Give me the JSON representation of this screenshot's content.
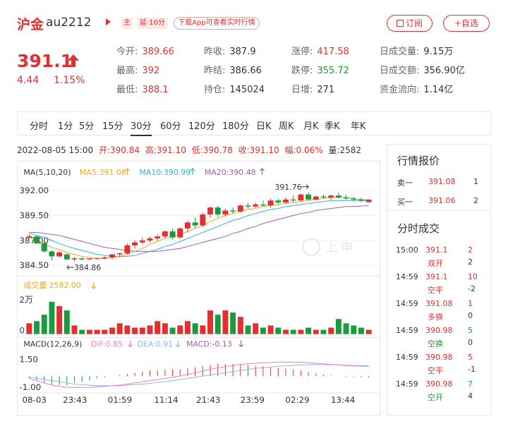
{
  "header": {
    "title": "沪金",
    "code": "au2212",
    "tag_main": "主",
    "tag_delay": "延 10分",
    "download": "下载App可查看实时行情",
    "subscribe": "订阅",
    "add": "+自选"
  },
  "quote": {
    "price": "391.1",
    "change": "4.44",
    "pct": "1.15%"
  },
  "stats": [
    {
      "label": "今开:",
      "value": "389.66",
      "color": "red"
    },
    {
      "label": "昨收:",
      "value": "387.9",
      "color": ""
    },
    {
      "label": "涨停:",
      "value": "417.58",
      "color": "red"
    },
    {
      "label": "日成交量:",
      "value": "9.15万",
      "color": ""
    },
    {
      "label": "最高:",
      "value": "392",
      "color": "red"
    },
    {
      "label": "昨结:",
      "value": "386.66",
      "color": ""
    },
    {
      "label": "跌停:",
      "value": "355.72",
      "color": "green"
    },
    {
      "label": "日成交额:",
      "value": "356.90亿",
      "color": ""
    },
    {
      "label": "最低:",
      "value": "388.1",
      "color": "red"
    },
    {
      "label": "持仓:",
      "value": "145024",
      "color": ""
    },
    {
      "label": "日增:",
      "value": "271",
      "color": ""
    },
    {
      "label": "资金流向:",
      "value": "1.14亿",
      "color": ""
    }
  ],
  "tabs": [
    "分时",
    "1分",
    "5分",
    "15分",
    "30分",
    "60分",
    "120分",
    "180分",
    "日K",
    "周K",
    "月K",
    "季K",
    "年K"
  ],
  "active_tab": "30分",
  "info": {
    "datetime": "2022-08-05  15:00",
    "open": "开:390.84",
    "high": "高:391.10",
    "low": "低:390.78",
    "close": "收:391.10",
    "amp": "幅:0.06%",
    "vol": "量:2582"
  },
  "chart_data": {
    "type": "candlestick",
    "ma_legend": {
      "label": "MA(5,10,20)",
      "ma5": "MA5:391.08",
      "ma10": "MA10:390.99",
      "ma20": "MA20:390.48"
    },
    "price_ticks": [
      "392.00",
      "389.50",
      "387.00",
      "384.50"
    ],
    "price_range": [
      383.8,
      392.8
    ],
    "max_label": "391.76",
    "min_label": "384.86",
    "vol_legend": "成交量  2582.00",
    "vol_ticks": [
      "2万",
      "0"
    ],
    "macd_legend": {
      "label": "MACD(12,26,9)",
      "dif": "DIF:0.85",
      "dea": "DEA:0.91",
      "macd": "MACD:-0.13"
    },
    "macd_ticks": [
      "1.50",
      "-1.00"
    ],
    "x_labels": [
      "08-03",
      "23:43",
      "01:59",
      "11:14",
      "21:43",
      "23:59",
      "02:29",
      "13:44"
    ],
    "watermark": "上 申",
    "candles": [
      [
        387.3,
        387.6,
        387.2,
        387.4
      ],
      [
        387.4,
        387.5,
        386.6,
        386.7
      ],
      [
        386.7,
        386.8,
        385.8,
        385.9
      ],
      [
        385.9,
        386.0,
        385.0,
        385.4
      ],
      [
        385.4,
        385.9,
        385.3,
        385.8
      ],
      [
        385.6,
        385.7,
        385.0,
        385.1
      ],
      [
        385.1,
        385.3,
        384.9,
        385.2
      ],
      [
        385.2,
        385.3,
        385.0,
        385.1
      ],
      [
        385.1,
        385.2,
        385.0,
        385.2
      ],
      [
        385.2,
        385.3,
        385.1,
        385.2
      ],
      [
        385.2,
        385.4,
        385.1,
        385.3
      ],
      [
        385.3,
        385.6,
        385.1,
        385.6
      ],
      [
        385.6,
        385.8,
        385.3,
        385.7
      ],
      [
        385.7,
        386.7,
        385.6,
        386.5
      ],
      [
        386.5,
        387.0,
        386.2,
        386.8
      ],
      [
        386.8,
        387.3,
        386.6,
        387.0
      ],
      [
        387.0,
        387.4,
        386.8,
        387.2
      ],
      [
        387.2,
        387.6,
        387.0,
        387.4
      ],
      [
        387.4,
        388.0,
        387.2,
        387.9
      ],
      [
        387.9,
        388.2,
        387.1,
        387.3
      ],
      [
        387.3,
        388.3,
        387.2,
        388.2
      ],
      [
        388.2,
        389.0,
        387.8,
        388.8
      ],
      [
        388.8,
        389.3,
        388.2,
        388.5
      ],
      [
        388.5,
        389.8,
        388.3,
        389.6
      ],
      [
        389.6,
        390.4,
        389.3,
        390.3
      ],
      [
        390.3,
        390.5,
        389.3,
        389.6
      ],
      [
        389.6,
        390.2,
        389.4,
        390.0
      ],
      [
        390.0,
        390.3,
        389.7,
        389.9
      ],
      [
        389.9,
        390.6,
        389.8,
        390.5
      ],
      [
        390.5,
        390.8,
        390.2,
        390.4
      ],
      [
        390.4,
        390.8,
        390.3,
        390.6
      ],
      [
        390.6,
        391.0,
        390.4,
        390.5
      ],
      [
        390.5,
        391.2,
        390.3,
        391.0
      ],
      [
        391.0,
        391.2,
        390.6,
        390.8
      ],
      [
        390.8,
        391.3,
        390.7,
        391.1
      ],
      [
        391.1,
        391.5,
        390.8,
        391.0
      ],
      [
        391.0,
        391.7,
        390.9,
        391.6
      ],
      [
        391.6,
        391.8,
        391.0,
        391.1
      ],
      [
        391.1,
        391.5,
        391.0,
        391.4
      ],
      [
        391.4,
        391.6,
        391.2,
        391.3
      ],
      [
        391.3,
        391.6,
        391.1,
        391.5
      ],
      [
        391.5,
        391.8,
        391.2,
        391.3
      ],
      [
        391.3,
        391.6,
        391.1,
        391.2
      ],
      [
        391.2,
        391.4,
        390.9,
        391.1
      ],
      [
        391.1,
        391.3,
        390.8,
        391.0
      ],
      [
        390.84,
        391.1,
        390.78,
        391.1
      ]
    ],
    "volume": [
      5,
      6,
      9,
      15,
      13,
      11,
      4,
      2,
      2,
      2,
      2,
      3,
      5,
      4,
      3,
      3,
      4,
      6,
      5,
      3,
      4,
      6,
      5,
      4,
      11,
      9,
      11,
      10,
      8,
      4,
      5,
      3,
      4,
      3,
      2,
      2,
      2,
      3,
      2,
      2,
      3,
      7,
      5,
      4,
      3,
      2
    ],
    "ma5": [
      387.5,
      387.1,
      386.7,
      386.3,
      386.1,
      385.8,
      385.6,
      385.4,
      385.3,
      385.2,
      385.2,
      385.3,
      385.4,
      385.6,
      385.9,
      386.2,
      386.6,
      386.9,
      387.2,
      387.4,
      387.6,
      387.9,
      388.2,
      388.5,
      388.9,
      389.2,
      389.5,
      389.7,
      389.9,
      390.1,
      390.2,
      390.4,
      390.5,
      390.6,
      390.7,
      390.8,
      390.9,
      391.0,
      391.1,
      391.2,
      391.3,
      391.3,
      391.3,
      391.2,
      391.1,
      391.08
    ],
    "ma10": [
      387.7,
      387.5,
      387.3,
      387.0,
      386.7,
      386.4,
      386.2,
      386.0,
      385.8,
      385.6,
      385.5,
      385.4,
      385.4,
      385.4,
      385.5,
      385.7,
      385.9,
      386.1,
      386.4,
      386.6,
      386.9,
      387.2,
      387.5,
      387.8,
      388.1,
      388.4,
      388.7,
      389.0,
      389.2,
      389.5,
      389.7,
      389.9,
      390.1,
      390.2,
      390.4,
      390.5,
      390.6,
      390.7,
      390.8,
      390.9,
      391.0,
      391.0,
      391.0,
      391.0,
      391.0,
      390.99
    ],
    "ma20": [
      387.8,
      387.8,
      387.7,
      387.6,
      387.5,
      387.3,
      387.1,
      386.9,
      386.7,
      386.5,
      386.3,
      386.2,
      386.1,
      386.0,
      385.9,
      385.9,
      385.9,
      385.9,
      386.0,
      386.1,
      386.2,
      386.4,
      386.6,
      386.8,
      387.0,
      387.2,
      387.4,
      387.7,
      387.9,
      388.2,
      388.4,
      388.7,
      388.9,
      389.1,
      389.3,
      389.5,
      389.7,
      389.8,
      390.0,
      390.1,
      390.2,
      390.3,
      390.4,
      390.4,
      390.45,
      390.48
    ],
    "dif": [
      -0.2,
      -0.4,
      -0.6,
      -0.8,
      -0.9,
      -1.0,
      -1.0,
      -1.0,
      -1.0,
      -0.95,
      -0.9,
      -0.85,
      -0.8,
      -0.7,
      -0.6,
      -0.5,
      -0.4,
      -0.3,
      -0.2,
      -0.1,
      0.0,
      0.15,
      0.3,
      0.45,
      0.6,
      0.75,
      0.85,
      0.95,
      1.05,
      1.1,
      1.15,
      1.2,
      1.22,
      1.25,
      1.25,
      1.25,
      1.25,
      1.2,
      1.15,
      1.1,
      1.05,
      1.0,
      0.95,
      0.92,
      0.88,
      0.85
    ],
    "dea": [
      -0.1,
      -0.2,
      -0.3,
      -0.4,
      -0.5,
      -0.6,
      -0.7,
      -0.75,
      -0.8,
      -0.85,
      -0.85,
      -0.85,
      -0.85,
      -0.8,
      -0.75,
      -0.7,
      -0.65,
      -0.55,
      -0.5,
      -0.4,
      -0.3,
      -0.2,
      -0.1,
      0.0,
      0.1,
      0.2,
      0.3,
      0.4,
      0.5,
      0.6,
      0.7,
      0.75,
      0.82,
      0.88,
      0.92,
      0.96,
      1.0,
      1.02,
      1.03,
      1.03,
      1.02,
      1.0,
      0.98,
      0.95,
      0.93,
      0.91
    ],
    "colors": {
      "up": "#e0302f",
      "down": "#1a9b3d",
      "ma5": "#f5a623",
      "ma10": "#2bb0e6",
      "ma20": "#a05ca6",
      "dif": "#f07ec4",
      "dea": "#8fb3e8"
    }
  },
  "side": {
    "orderbook_title": "行情报价",
    "orderbook": [
      {
        "label": "卖一",
        "price": "391.08",
        "qty": "1"
      },
      {
        "label": "买一",
        "price": "391.06",
        "qty": "2"
      }
    ],
    "trades_title": "分时成交",
    "trades": [
      {
        "time": "15:00",
        "price": "391.1",
        "qty": "2",
        "type": "双开",
        "oi": "2",
        "pc": "red",
        "qc": "red",
        "tc": "red"
      },
      {
        "time": "14:59",
        "price": "391.1",
        "qty": "10",
        "type": "空平",
        "oi": "-2",
        "pc": "red",
        "qc": "red",
        "tc": "red"
      },
      {
        "time": "14:59",
        "price": "391.08",
        "qty": "1",
        "type": "多换",
        "oi": "0",
        "pc": "red",
        "qc": "red",
        "tc": "red"
      },
      {
        "time": "14:59",
        "price": "390.98",
        "qty": "5",
        "type": "空换",
        "oi": "0",
        "pc": "red",
        "qc": "green",
        "tc": "green"
      },
      {
        "time": "14:59",
        "price": "390.98",
        "qty": "5",
        "type": "空平",
        "oi": "-1",
        "pc": "red",
        "qc": "red",
        "tc": "red"
      },
      {
        "time": "14:59",
        "price": "390.98",
        "qty": "7",
        "type": "空开",
        "oi": "4",
        "pc": "red",
        "qc": "green",
        "tc": "green"
      }
    ]
  }
}
